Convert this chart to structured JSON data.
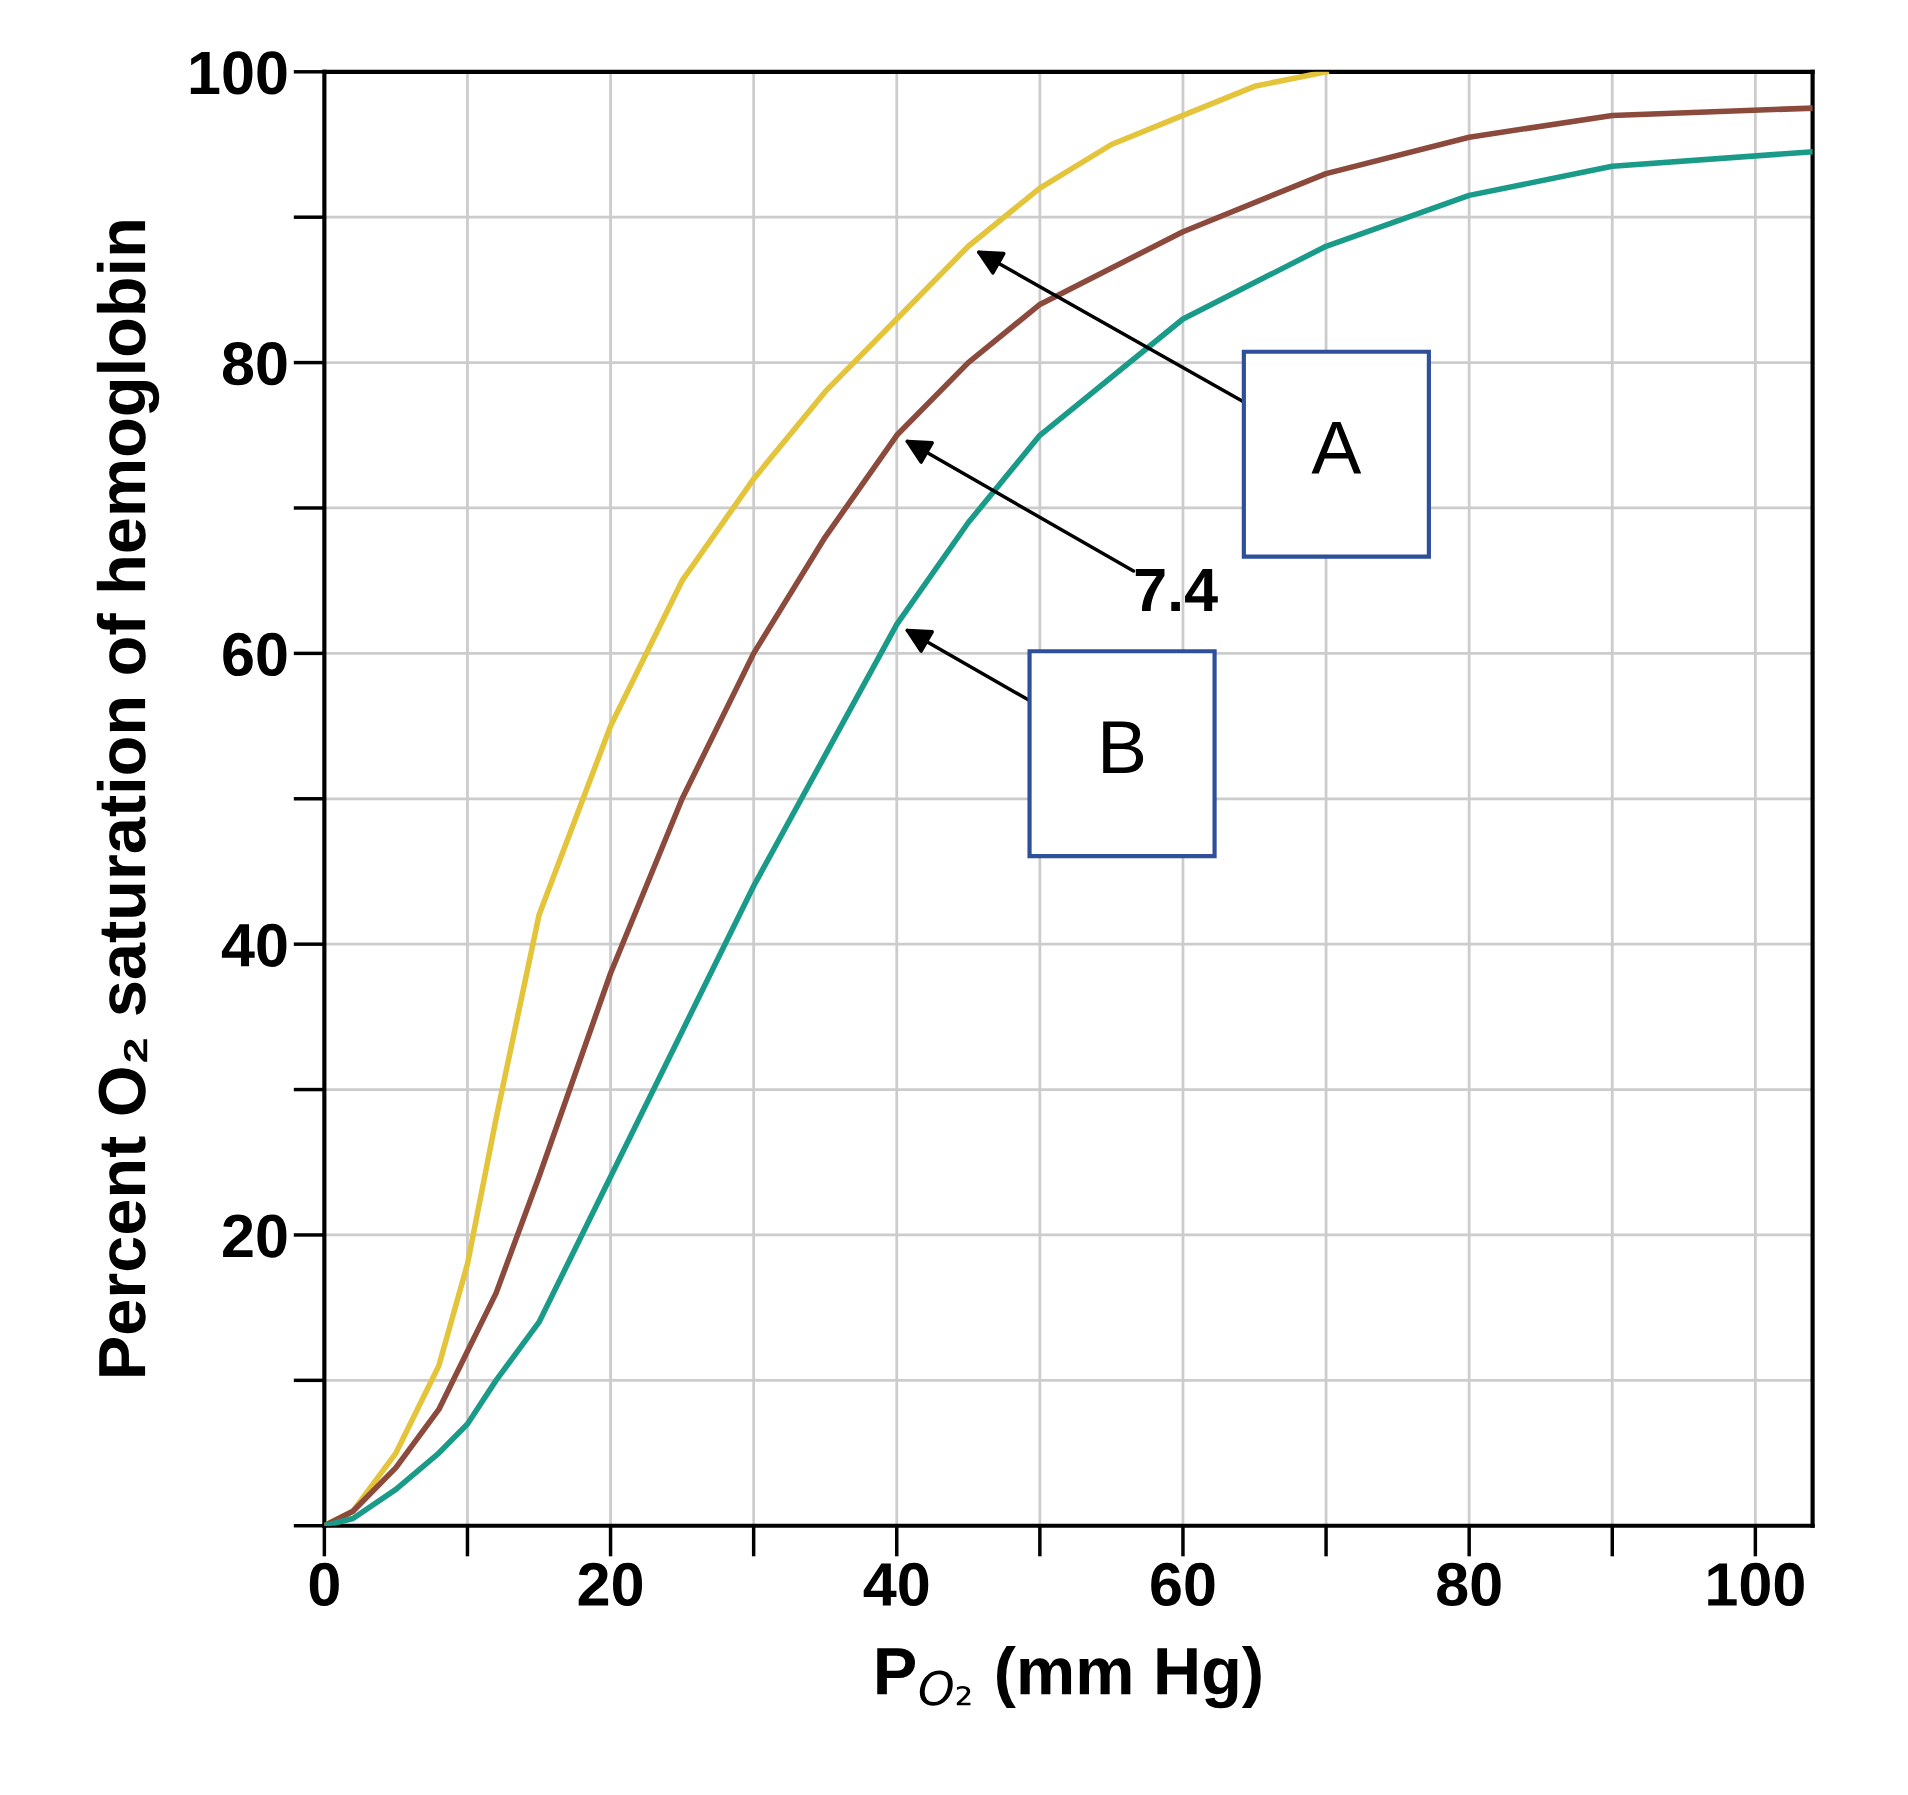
{
  "chart_data": {
    "type": "line",
    "xlabel": "P$_{O₂}$ (mm Hg)",
    "ylabel": "Percent O₂ saturation of hemoglobin",
    "xlim": [
      0,
      104
    ],
    "ylim": [
      0,
      100
    ],
    "xticks": [
      0,
      {
        "value": 10,
        "label": null
      },
      20,
      {
        "value": 30,
        "label": null
      },
      40,
      {
        "value": 50,
        "label": null
      },
      60,
      {
        "value": 70,
        "label": null
      },
      80,
      {
        "value": 90,
        "label": null
      },
      100
    ],
    "yticks": [
      {
        "value": 0,
        "label": null
      },
      {
        "value": 10,
        "label": null
      },
      20,
      {
        "value": 30,
        "label": null
      },
      40,
      {
        "value": 50,
        "label": null
      },
      60,
      {
        "value": 70,
        "label": null
      },
      80,
      {
        "value": 90,
        "label": null
      },
      100
    ],
    "grid": true,
    "marker": "none",
    "line_style": "solid",
    "series": [
      {
        "color": "#e3c43a",
        "x": [
          0,
          2,
          5,
          8,
          10,
          12,
          15,
          20,
          25,
          30,
          35,
          40,
          45,
          50,
          55,
          60,
          65,
          70
        ],
        "values": [
          0,
          1,
          5,
          11,
          18,
          28,
          42,
          55,
          65,
          72,
          78,
          83,
          88,
          92,
          95,
          97,
          99,
          100
        ]
      },
      {
        "color": "#8b4a3c",
        "x": [
          0,
          2,
          5,
          8,
          10,
          12,
          15,
          20,
          25,
          30,
          35,
          40,
          45,
          50,
          60,
          70,
          80,
          90,
          104
        ],
        "values": [
          0,
          1,
          4,
          8,
          12,
          16,
          24,
          38,
          50,
          60,
          68,
          75,
          80,
          84,
          89,
          93,
          95.5,
          97,
          97.5
        ]
      },
      {
        "color": "#1a9a88",
        "x": [
          0,
          2,
          5,
          8,
          10,
          12,
          15,
          20,
          25,
          30,
          35,
          40,
          45,
          50,
          60,
          70,
          80,
          90,
          104
        ],
        "values": [
          0,
          0.5,
          2.5,
          5,
          7,
          10,
          14,
          24,
          34,
          44,
          53,
          62,
          69,
          75,
          83,
          88,
          91.5,
          93.5,
          94.5
        ]
      }
    ],
    "annotations": [
      "A",
      "7.4",
      "B"
    ]
  }
}
